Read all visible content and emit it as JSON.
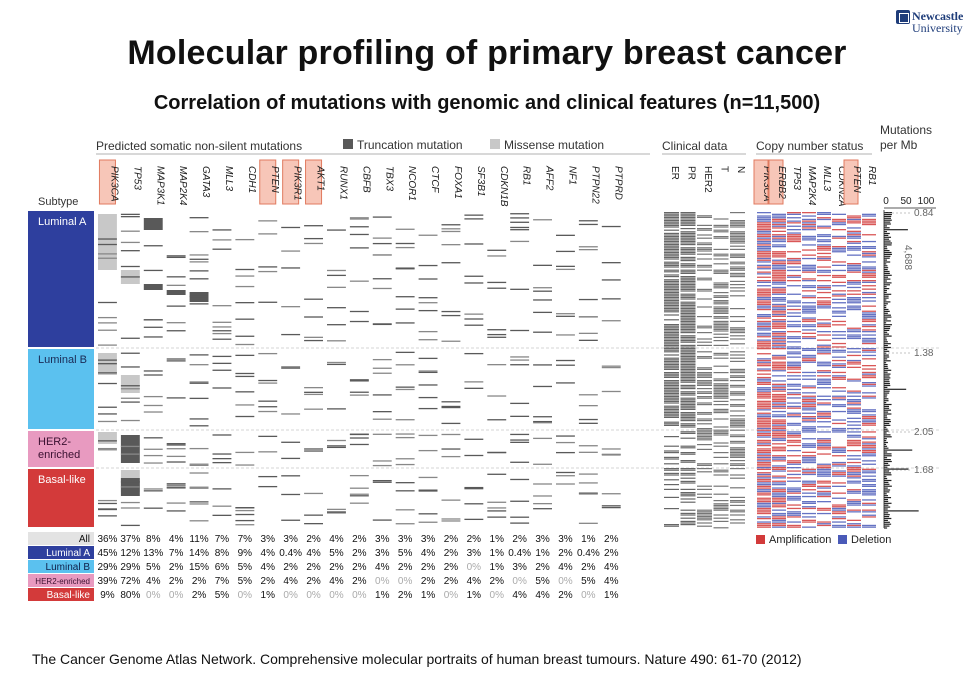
{
  "logo": {
    "line1": "Newcastle",
    "line2": "University"
  },
  "title": "Molecular profiling of primary breast cancer",
  "subtitle": "Correlation of mutations with genomic and clinical features (n=11,500)",
  "legend": {
    "section_label": "Predicted somatic non-silent mutations",
    "truncation": "Truncation mutation",
    "missense": "Missense mutation",
    "clinical": "Clinical data",
    "copy_number": "Copy number status",
    "mutations_per_mb": [
      "Mutations",
      "per Mb"
    ],
    "amplification": "Amplification",
    "deletion": "Deletion",
    "subtype_header": "Subtype",
    "colors": {
      "truncation": "#595959",
      "missense": "#c8c8c8",
      "clinical": "#666666",
      "amplification": "#d23a3a",
      "deletion": "#4a5ab8",
      "highlight_fill": "#f7c6b8",
      "highlight_border": "#e07a5f"
    }
  },
  "genes": [
    {
      "name": "PIK3CA",
      "highlight": true
    },
    {
      "name": "TP53",
      "highlight": false
    },
    {
      "name": "MAP3K1",
      "highlight": false
    },
    {
      "name": "MAP2K4",
      "highlight": false
    },
    {
      "name": "GATA3",
      "highlight": false
    },
    {
      "name": "MLL3",
      "highlight": false
    },
    {
      "name": "CDH1",
      "highlight": false
    },
    {
      "name": "PTEN",
      "highlight": true
    },
    {
      "name": "PIK3R1",
      "highlight": true
    },
    {
      "name": "AKT1",
      "highlight": true
    },
    {
      "name": "RUNX1",
      "highlight": false
    },
    {
      "name": "CBFB",
      "highlight": false
    },
    {
      "name": "TBX3",
      "highlight": false
    },
    {
      "name": "NCOR1",
      "highlight": false
    },
    {
      "name": "CTCF",
      "highlight": false
    },
    {
      "name": "FOXA1",
      "highlight": false
    },
    {
      "name": "SF3B1",
      "highlight": false
    },
    {
      "name": "CDKN1B",
      "highlight": false
    },
    {
      "name": "RB1",
      "highlight": false
    },
    {
      "name": "AFF2",
      "highlight": false
    },
    {
      "name": "NF1",
      "highlight": false
    },
    {
      "name": "PTPN22",
      "highlight": false
    },
    {
      "name": "PTPRD",
      "highlight": false
    }
  ],
  "clinical_columns": [
    "ER",
    "PR",
    "HER2",
    "T",
    "N"
  ],
  "copy_number_genes": [
    {
      "name": "PIK3CA",
      "highlight": true
    },
    {
      "name": "ERBB2",
      "highlight": true
    },
    {
      "name": "TP53",
      "highlight": false
    },
    {
      "name": "MAP2K4",
      "highlight": false
    },
    {
      "name": "MLL3",
      "highlight": false
    },
    {
      "name": "CDKN2A",
      "highlight": false
    },
    {
      "name": "PTEN",
      "highlight": true
    },
    {
      "name": "RB1",
      "highlight": false
    }
  ],
  "mutation_axis": {
    "ticks": [
      "0",
      "50",
      "100"
    ]
  },
  "subtypes": [
    {
      "name": "Luminal A",
      "lines": [
        "Luminal A"
      ],
      "color": "#2e3f9e",
      "text_color": "#ffffff",
      "median": "0.84",
      "second_value": "4,688"
    },
    {
      "name": "Luminal B",
      "lines": [
        "Luminal B"
      ],
      "color": "#5bc1ef",
      "text_color": "#1a2a55",
      "median": "1.38"
    },
    {
      "name": "HER2-enriched",
      "lines": [
        "HER2-",
        "enriched"
      ],
      "color": "#e89ac0",
      "text_color": "#3a1030",
      "median": "2.05"
    },
    {
      "name": "Basal-like",
      "lines": [
        "Basal-like"
      ],
      "color": "#d33a3a",
      "text_color": "#ffffff",
      "median": "1.68"
    }
  ],
  "freq_table": {
    "rows": [
      {
        "label": "All",
        "bg": "#e3e3e3",
        "fg": "#111111",
        "values": [
          "36%",
          "37%",
          "8%",
          "4%",
          "11%",
          "7%",
          "7%",
          "3%",
          "3%",
          "2%",
          "4%",
          "2%",
          "3%",
          "3%",
          "3%",
          "2%",
          "2%",
          "1%",
          "2%",
          "3%",
          "3%",
          "1%",
          "2%"
        ]
      },
      {
        "label": "Luminal A",
        "bg": "#2e3f9e",
        "fg": "#ffffff",
        "values": [
          "45%",
          "12%",
          "13%",
          "7%",
          "14%",
          "8%",
          "9%",
          "4%",
          "0.4%",
          "4%",
          "5%",
          "2%",
          "3%",
          "5%",
          "4%",
          "2%",
          "3%",
          "1%",
          "0.4%",
          "1%",
          "2%",
          "0.4%",
          "2%"
        ]
      },
      {
        "label": "Luminal B",
        "bg": "#5bc1ef",
        "fg": "#10204a",
        "values": [
          "29%",
          "29%",
          "5%",
          "2%",
          "15%",
          "6%",
          "5%",
          "4%",
          "2%",
          "2%",
          "2%",
          "2%",
          "4%",
          "2%",
          "2%",
          "2%",
          "0%",
          "1%",
          "3%",
          "2%",
          "4%",
          "2%",
          "4%"
        ]
      },
      {
        "label": "HER2-enriched",
        "bg": "#e89ac0",
        "fg": "#3a1030",
        "values": [
          "39%",
          "72%",
          "4%",
          "2%",
          "2%",
          "7%",
          "5%",
          "2%",
          "4%",
          "2%",
          "4%",
          "2%",
          "0%",
          "0%",
          "2%",
          "2%",
          "4%",
          "2%",
          "0%",
          "5%",
          "0%",
          "5%",
          "4%"
        ]
      },
      {
        "label": "Basal-like",
        "bg": "#d33a3a",
        "fg": "#ffffff",
        "values": [
          "9%",
          "80%",
          "0%",
          "0%",
          "2%",
          "5%",
          "0%",
          "1%",
          "0%",
          "0%",
          "0%",
          "0%",
          "1%",
          "2%",
          "1%",
          "0%",
          "1%",
          "0%",
          "4%",
          "4%",
          "2%",
          "0%",
          "1%"
        ]
      }
    ]
  },
  "citation": "The Cancer Genome Atlas Network. Comprehensive molecular portraits of human breast tumours. Nature 490: 61-70 (2012)"
}
